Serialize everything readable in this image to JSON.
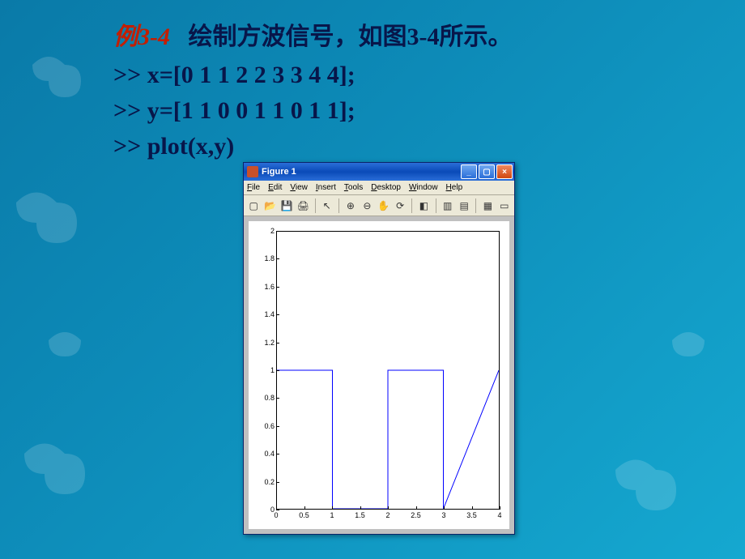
{
  "slide": {
    "example_label_zh": "例",
    "example_number": "3-4",
    "title_text": "绘制方波信号，如图3-4所示。",
    "code_lines": [
      ">> x=[0 1 1 2 2 3 3 4 4];",
      ">> y=[1 1 0 0 1 1 0 1 1];",
      ">> plot(x,y)"
    ]
  },
  "matlab_figure": {
    "window_title": "Figure 1",
    "titlebar_bg_start": "#2a6ed8",
    "titlebar_bg_end": "#0a4ab8",
    "menu_items": [
      "File",
      "Edit",
      "View",
      "Insert",
      "Tools",
      "Desktop",
      "Window",
      "Help"
    ],
    "toolbar_icons": [
      {
        "name": "new-icon",
        "glyph": "▢"
      },
      {
        "name": "open-icon",
        "glyph": "📂"
      },
      {
        "name": "save-icon",
        "glyph": "💾"
      },
      {
        "name": "print-icon",
        "glyph": "🖨"
      },
      {
        "name": "sep"
      },
      {
        "name": "pointer-icon",
        "glyph": "↖"
      },
      {
        "name": "sep"
      },
      {
        "name": "zoom-in-icon",
        "glyph": "⊕"
      },
      {
        "name": "zoom-out-icon",
        "glyph": "⊖"
      },
      {
        "name": "pan-icon",
        "glyph": "✋"
      },
      {
        "name": "rotate-icon",
        "glyph": "⟳"
      },
      {
        "name": "sep"
      },
      {
        "name": "data-cursor-icon",
        "glyph": "◧"
      },
      {
        "name": "sep"
      },
      {
        "name": "colorbar-icon",
        "glyph": "▥"
      },
      {
        "name": "legend-icon",
        "glyph": "▤"
      },
      {
        "name": "sep"
      },
      {
        "name": "axes-icon",
        "glyph": "▦"
      },
      {
        "name": "grid-icon",
        "glyph": "▭"
      }
    ],
    "plot": {
      "type": "line",
      "x": [
        0,
        1,
        1,
        2,
        2,
        3,
        3,
        4,
        4
      ],
      "y": [
        1,
        1,
        0,
        0,
        1,
        1,
        0,
        1,
        1
      ],
      "line_color": "#0000ff",
      "line_width": 1,
      "background_color": "#ffffff",
      "axes_line_color": "#000000",
      "xlim": [
        0,
        4
      ],
      "ylim": [
        0,
        2
      ],
      "xticks": [
        0,
        0.5,
        1,
        1.5,
        2,
        2.5,
        3,
        3.5,
        4
      ],
      "yticks": [
        0,
        0.2,
        0.4,
        0.6,
        0.8,
        1,
        1.2,
        1.4,
        1.6,
        1.8,
        2
      ],
      "tick_fontsize": 9
    }
  },
  "colors": {
    "slide_bg_from": "#0a7aa8",
    "slide_bg_to": "#15a8d0",
    "example_label": "#c41e00",
    "body_text": "#08164a",
    "window_chrome": "#ece9d8",
    "plot_outer": "#c0c0c0"
  }
}
